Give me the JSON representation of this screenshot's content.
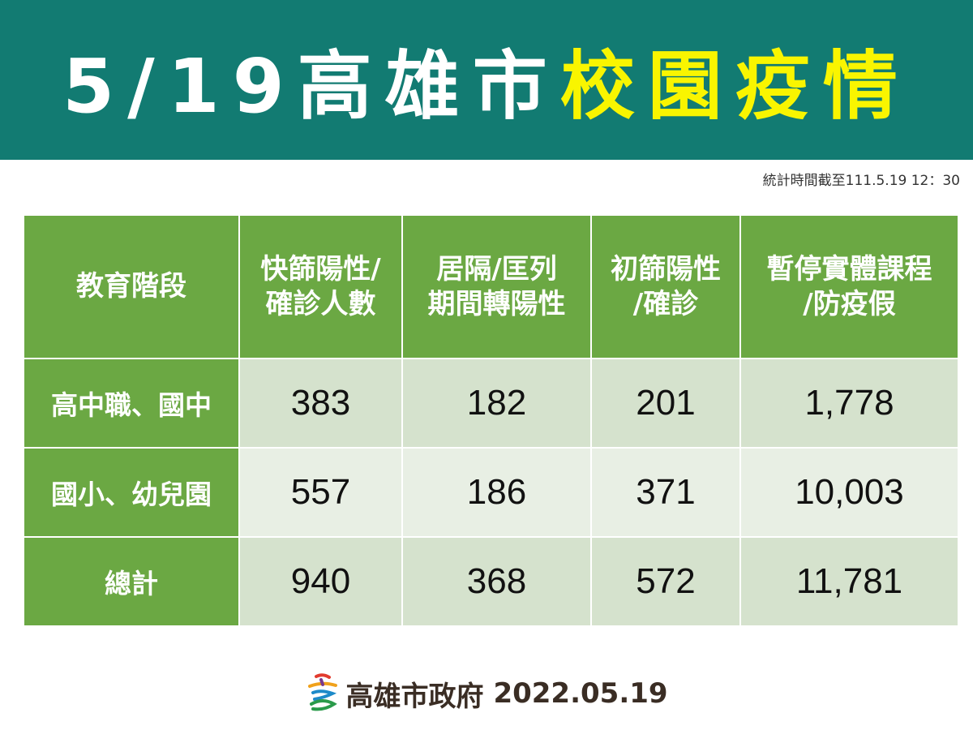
{
  "banner": {
    "title_part1": "5/19高雄市",
    "title_part2": "校園疫情",
    "bg_color": "#127b72",
    "highlight_color": "#f9f500"
  },
  "stat_time": "統計時間截至111.5.19 12：30",
  "table": {
    "header_bg": "#6ba843",
    "headers": [
      [
        "教育階段"
      ],
      [
        "快篩陽性/",
        "確診人數"
      ],
      [
        "居隔/匡列",
        "期間轉陽性"
      ],
      [
        "初篩陽性",
        "/確診"
      ],
      [
        "暫停實體課程",
        "/防疫假"
      ]
    ],
    "rows": [
      {
        "label": "高中職、國中",
        "values": [
          "383",
          "182",
          "201",
          "1,778"
        ]
      },
      {
        "label": "國小、幼兒園",
        "values": [
          "557",
          "186",
          "371",
          "10,003"
        ]
      },
      {
        "label": "總計",
        "values": [
          "940",
          "368",
          "572",
          "11,781"
        ]
      }
    ]
  },
  "footer": {
    "org": "高雄市政府",
    "date": "2022.05.19",
    "logo_icon": "kaohsiung-city-logo-icon"
  }
}
